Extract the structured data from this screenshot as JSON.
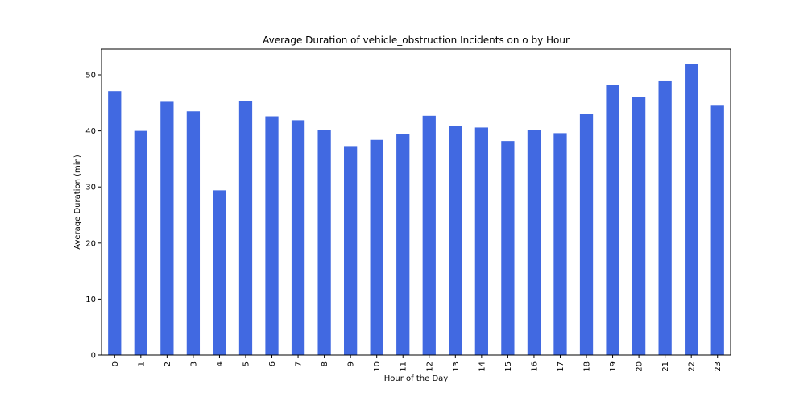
{
  "chart_data": {
    "type": "bar",
    "title": "Average Duration of vehicle_obstruction Incidents on o by Hour",
    "xlabel": "Hour of the Day",
    "ylabel": "Average Duration (min)",
    "categories": [
      "0",
      "1",
      "2",
      "3",
      "4",
      "5",
      "6",
      "7",
      "8",
      "9",
      "10",
      "11",
      "12",
      "13",
      "14",
      "15",
      "16",
      "17",
      "18",
      "19",
      "20",
      "21",
      "22",
      "23"
    ],
    "values": [
      47.1,
      40.0,
      45.2,
      43.5,
      29.4,
      45.3,
      42.6,
      41.9,
      40.1,
      37.3,
      38.4,
      39.4,
      42.7,
      40.9,
      40.6,
      38.2,
      40.1,
      39.6,
      43.1,
      48.2,
      46.0,
      49.0,
      52.0,
      44.5
    ],
    "ylim": [
      0,
      54.6
    ],
    "yticks": [
      0,
      10,
      20,
      30,
      40,
      50
    ],
    "grid": false,
    "legend": "none",
    "bar_color": "#4169e1"
  }
}
